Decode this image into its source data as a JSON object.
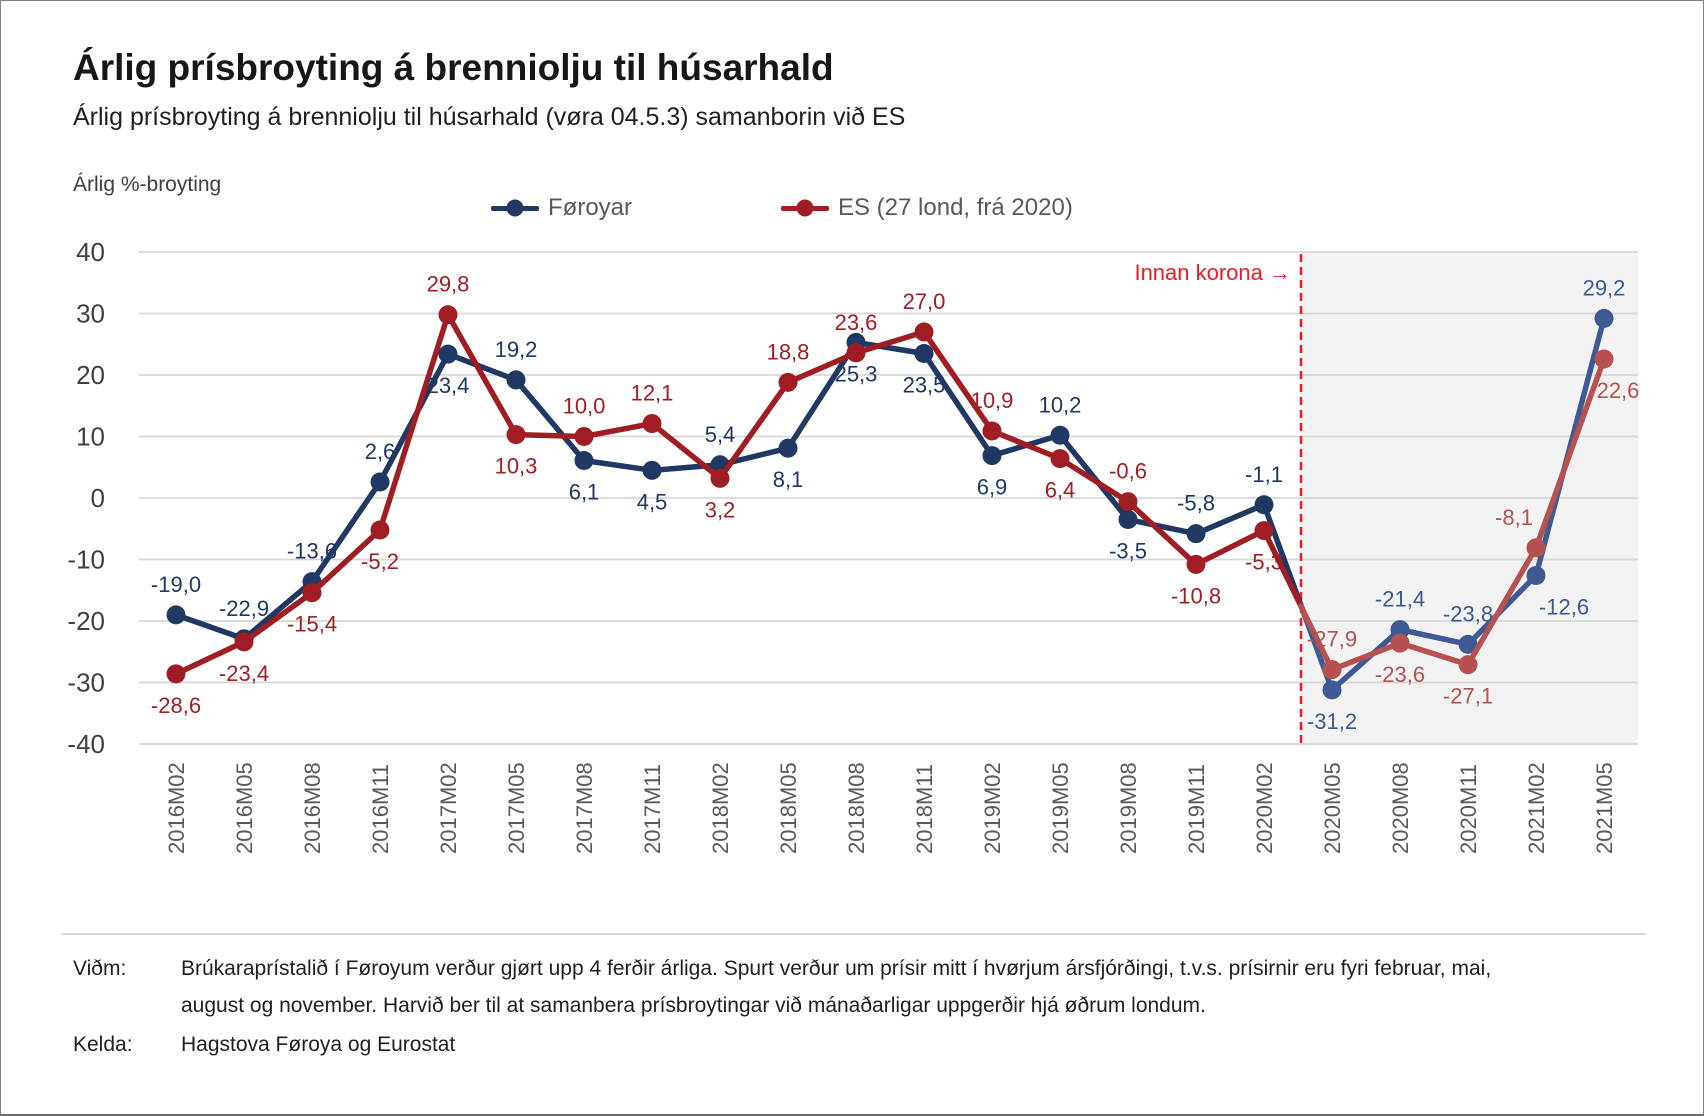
{
  "header": {
    "title": "Árlig prísbroyting á brenniolju til húsarhald",
    "subtitle": "Árlig prísbroyting á brenniolju til húsarhald (vøra 04.5.3) samanborin við ES"
  },
  "axis_title": "Árlig %-broyting",
  "footer": {
    "vidm_label": "Viðm:",
    "vidm_line1": "Brúkaraprístalið í Føroyum verður gjørt upp 4 ferðir árliga. Spurt verður um prísir mitt í hvørjum ársfjórðingi, t.v.s. prísirnir eru fyri februar, mai,",
    "vidm_line2": "august og november. Harvið ber til at samanbera prísbroytingar við mánaðarligar uppgerðir hjá øðrum londum.",
    "kelda_label": "Kelda:",
    "kelda_text": "Hagstova Føroya og Eurostat"
  },
  "chart_data": {
    "type": "line",
    "title": "Árlig prísbroyting á brenniolju til húsarhald",
    "ylabel": "Árlig %-broyting",
    "ylim": [
      -40,
      40
    ],
    "ytick_step": 10,
    "grid": true,
    "legend_position": "top",
    "decimal_separator": ",",
    "categories": [
      "2016M02",
      "2016M05",
      "2016M08",
      "2016M11",
      "2017M02",
      "2017M05",
      "2017M08",
      "2017M11",
      "2018M02",
      "2018M05",
      "2018M08",
      "2018M11",
      "2019M02",
      "2019M05",
      "2019M08",
      "2019M11",
      "2020M02",
      "2020M05",
      "2020M08",
      "2020M11",
      "2021M02",
      "2021M05"
    ],
    "series": [
      {
        "name": "Føroyar",
        "color": "#1F3864",
        "covid_color": "#3D5A95",
        "values": [
          -19.0,
          -22.9,
          -13.6,
          2.6,
          23.4,
          19.2,
          6.1,
          4.5,
          5.4,
          8.1,
          25.3,
          23.5,
          6.9,
          10.2,
          -3.5,
          -5.8,
          -1.1,
          -31.2,
          -21.4,
          -23.8,
          -12.6,
          29.2
        ],
        "label_side": [
          "above",
          "above",
          "above",
          "above",
          "below",
          "above",
          "below",
          "below",
          "above",
          "below",
          "below",
          "below",
          "below",
          "above",
          "below",
          "above",
          "above",
          "below",
          "above",
          "above",
          "below",
          "above"
        ],
        "label_dx": {
          "20": 28
        }
      },
      {
        "name": "ES (27 lond, frá 2020)",
        "color": "#A01D23",
        "covid_color": "#B7514F",
        "values": [
          -28.6,
          -23.4,
          -15.4,
          -5.2,
          29.8,
          10.3,
          10.0,
          12.1,
          3.2,
          18.8,
          23.6,
          27.0,
          10.9,
          6.4,
          -0.6,
          -10.8,
          -5.3,
          -27.9,
          -23.6,
          -27.1,
          -8.1,
          22.6
        ],
        "label_side": [
          "below",
          "below",
          "below",
          "below",
          "above",
          "below",
          "above",
          "above",
          "below",
          "above",
          "above",
          "above",
          "above",
          "below",
          "above",
          "below",
          "below",
          "above",
          "below",
          "below",
          "above",
          "below"
        ],
        "label_dx": {
          "20": -22,
          "21": 14
        }
      }
    ],
    "covid_region_start_category": "2020M05",
    "covid_annotation": "Innan korona →",
    "colors": {
      "gridline": "#d7d7d7",
      "covid_region_bg": "#f3f3f3",
      "covid_line": "#ee1b24",
      "xtick_text": "#595959",
      "ytick_text": "#404040"
    }
  }
}
